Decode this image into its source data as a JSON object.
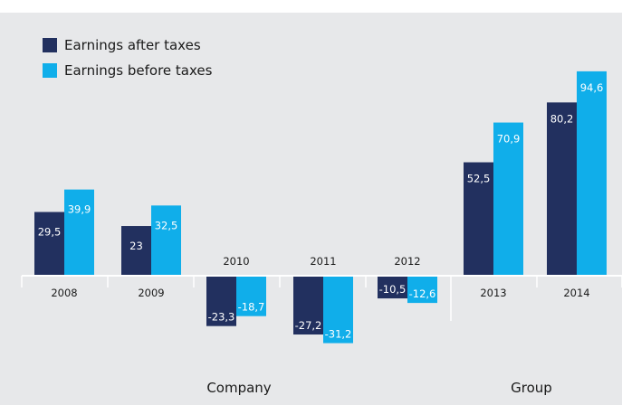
{
  "chart_data": {
    "type": "bar",
    "categories": [
      "2008",
      "2009",
      "2010",
      "2011",
      "2012",
      "2013",
      "2014"
    ],
    "series": [
      {
        "name": "Earnings after taxes",
        "values": [
          29.5,
          23,
          -23.3,
          -27.2,
          -10.5,
          52.5,
          80.2
        ],
        "labels": [
          "29,5",
          "23",
          "-23,3",
          "-27,2",
          "-10,5",
          "52,5",
          "80,2"
        ]
      },
      {
        "name": "Earnings before taxes",
        "values": [
          39.9,
          32.5,
          -18.7,
          -31.2,
          -12.6,
          70.9,
          94.6
        ],
        "labels": [
          "39,9",
          "32,5",
          "-18,7",
          "-31,2",
          "-12,6",
          "70,9",
          "94,6"
        ]
      }
    ],
    "groups": [
      {
        "label": "Company",
        "categories": [
          "2008",
          "2009",
          "2010",
          "2011",
          "2012"
        ]
      },
      {
        "label": "Group",
        "categories": [
          "2013",
          "2014"
        ]
      }
    ],
    "title": "",
    "xlabel": "",
    "ylabel": "",
    "ylim": [
      -40,
      100
    ],
    "grid": false,
    "legend_position": "top-left"
  },
  "colors": {
    "background": "#e7e8ea",
    "after_taxes": "#22305f",
    "before_taxes": "#10aeea",
    "label_on_bar": "#ffffff",
    "label_text": "#1a1a1a",
    "separator": "#ffffff"
  }
}
